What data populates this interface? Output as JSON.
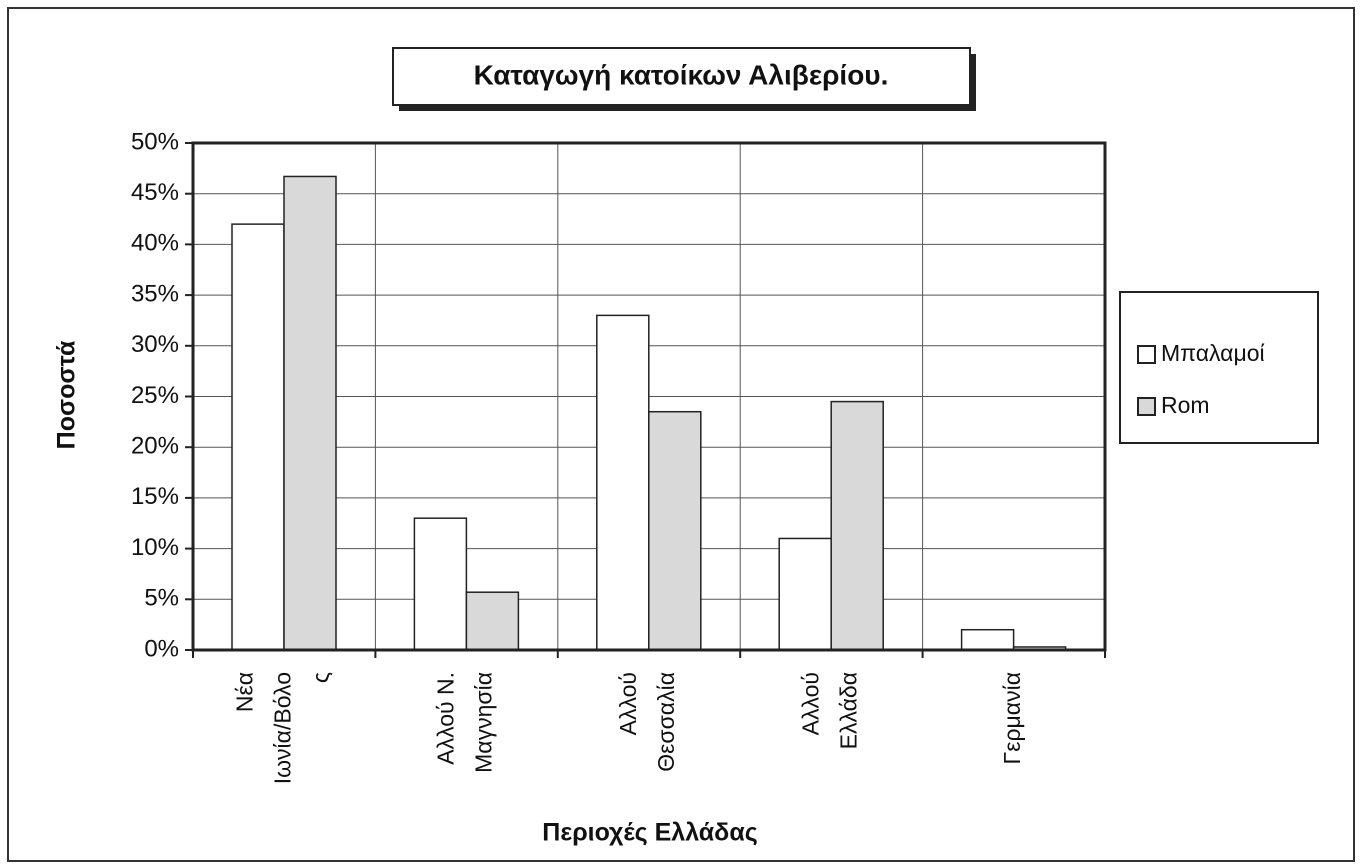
{
  "chart_data": {
    "type": "bar",
    "title": "Καταγωγή κατοίκων Αλιβερίου.",
    "y_label": "Ποσοστά",
    "x_label": "Περιοχές Ελλάδας",
    "categories": [
      [
        "Νέα",
        "Ιωνία/Βόλο",
        "ς"
      ],
      [
        "Αλλού Ν.",
        "Μαγνησία"
      ],
      [
        "Αλλού",
        "Θεσσαλία"
      ],
      [
        "Αλλού",
        "Ελλάδα"
      ],
      [
        "Γερμανία"
      ]
    ],
    "series": [
      {
        "name": "Μπαλαμοί",
        "color": "#ffffff",
        "values": [
          42,
          13,
          33,
          11,
          2
        ]
      },
      {
        "name": "Rom",
        "color": "#d9d9d9",
        "values": [
          46.7,
          5.7,
          23.5,
          24.5,
          0.3
        ]
      }
    ],
    "ylim": [
      0,
      50
    ],
    "yticks": [
      {
        "value": 0,
        "label": "0%"
      },
      {
        "value": 5,
        "label": "5%"
      },
      {
        "value": 10,
        "label": "10%"
      },
      {
        "value": 15,
        "label": "15%"
      },
      {
        "value": 20,
        "label": "20%"
      },
      {
        "value": 25,
        "label": "25%"
      },
      {
        "value": 30,
        "label": "30%"
      },
      {
        "value": 35,
        "label": "35%"
      },
      {
        "value": 40,
        "label": "40%"
      },
      {
        "value": 45,
        "label": "45%"
      },
      {
        "value": 50,
        "label": "50%"
      }
    ],
    "grid": true,
    "legend": "right"
  }
}
